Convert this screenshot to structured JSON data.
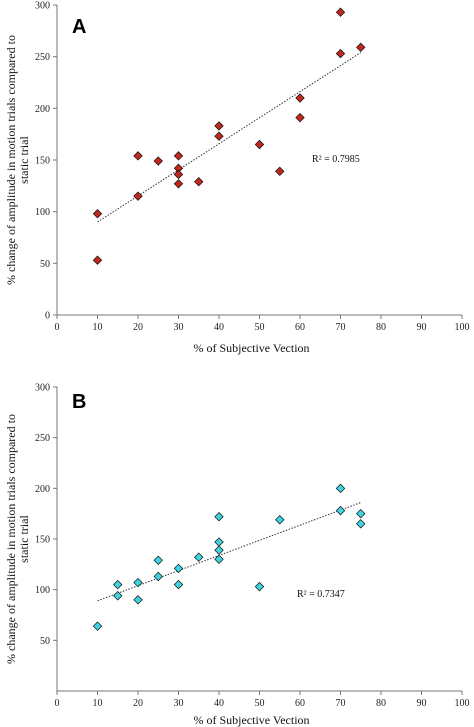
{
  "chart_data": [
    {
      "type": "scatter",
      "panel_label": "A",
      "xlabel": "% of Subjective Vection",
      "ylabel_lines": [
        "% change of amplitude in motion trials compared to",
        "static trial"
      ],
      "xlim": [
        0,
        100
      ],
      "ylim": [
        0,
        300
      ],
      "x_ticks": [
        0,
        10,
        20,
        30,
        40,
        50,
        60,
        70,
        80,
        90,
        100
      ],
      "y_ticks": [
        0,
        50,
        100,
        150,
        200,
        250,
        300
      ],
      "marker_color": "#c0281e",
      "trendline": {
        "x": [
          10,
          75
        ],
        "y": [
          90,
          254
        ]
      },
      "r_squared_label": "R² = 0.7985",
      "points": [
        {
          "x": 10,
          "y": 98
        },
        {
          "x": 10,
          "y": 53
        },
        {
          "x": 20,
          "y": 154
        },
        {
          "x": 20,
          "y": 115
        },
        {
          "x": 25,
          "y": 149
        },
        {
          "x": 30,
          "y": 154
        },
        {
          "x": 30,
          "y": 142
        },
        {
          "x": 30,
          "y": 136
        },
        {
          "x": 30,
          "y": 127
        },
        {
          "x": 35,
          "y": 129
        },
        {
          "x": 40,
          "y": 183
        },
        {
          "x": 40,
          "y": 173
        },
        {
          "x": 50,
          "y": 165
        },
        {
          "x": 55,
          "y": 139
        },
        {
          "x": 60,
          "y": 210
        },
        {
          "x": 60,
          "y": 191
        },
        {
          "x": 70,
          "y": 293
        },
        {
          "x": 70,
          "y": 253
        },
        {
          "x": 75,
          "y": 259
        }
      ]
    },
    {
      "type": "scatter",
      "panel_label": "B",
      "xlabel": "% of Subjective Vection",
      "ylabel_lines": [
        "% change of amplitude in motion trials compared to",
        "static trial"
      ],
      "xlim": [
        0,
        100
      ],
      "ylim": [
        0,
        300
      ],
      "x_ticks": [
        0,
        10,
        20,
        30,
        40,
        50,
        60,
        70,
        80,
        90,
        100
      ],
      "y_ticks": [
        50,
        100,
        150,
        200,
        250,
        300
      ],
      "marker_color": "#3fd2e0",
      "trendline": {
        "x": [
          10,
          75
        ],
        "y": [
          89,
          186
        ]
      },
      "r_squared_label": "R² = 0.7347",
      "points": [
        {
          "x": 10,
          "y": 64
        },
        {
          "x": 15,
          "y": 105
        },
        {
          "x": 15,
          "y": 94
        },
        {
          "x": 20,
          "y": 107
        },
        {
          "x": 20,
          "y": 90
        },
        {
          "x": 25,
          "y": 129
        },
        {
          "x": 25,
          "y": 113
        },
        {
          "x": 30,
          "y": 121
        },
        {
          "x": 30,
          "y": 105
        },
        {
          "x": 35,
          "y": 132
        },
        {
          "x": 40,
          "y": 172
        },
        {
          "x": 40,
          "y": 147
        },
        {
          "x": 40,
          "y": 139
        },
        {
          "x": 40,
          "y": 130
        },
        {
          "x": 50,
          "y": 103
        },
        {
          "x": 55,
          "y": 169
        },
        {
          "x": 70,
          "y": 200
        },
        {
          "x": 70,
          "y": 178
        },
        {
          "x": 75,
          "y": 175
        },
        {
          "x": 75,
          "y": 165
        }
      ]
    }
  ]
}
